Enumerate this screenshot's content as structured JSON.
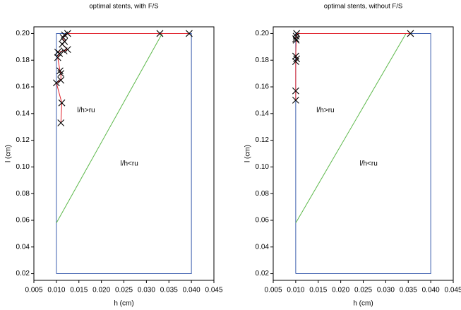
{
  "chart_data": [
    {
      "type": "line",
      "title": "optimal stents, with F/S",
      "xlabel": "h (cm)",
      "ylabel": "l (cm)",
      "xlim": [
        0.005,
        0.045
      ],
      "ylim": [
        0.015,
        0.205
      ],
      "xticks": [
        0.005,
        {
          "value": 0.01,
          "label": "0.010"
        },
        0.015,
        {
          "value": 0.02,
          "label": "0.020"
        },
        0.025,
        {
          "value": 0.03,
          "label": "0.030"
        },
        0.035,
        {
          "value": 0.04,
          "label": "0.040"
        },
        0.045
      ],
      "yticks": [
        0.02,
        0.04,
        0.06,
        0.08,
        {
          "value": 0.1,
          "label": "0.10"
        },
        0.12,
        0.14,
        0.16,
        0.18,
        {
          "value": 0.2,
          "label": "0.20"
        }
      ],
      "series": [
        {
          "color": "#3a5cae",
          "x": [
            0.01,
            0.04,
            0.04,
            0.01,
            0.01
          ],
          "values": [
            0.02,
            0.02,
            0.2,
            0.2,
            0.02
          ]
        },
        {
          "color": "#5cb84a",
          "x": [
            0.01,
            0.0335
          ],
          "values": [
            0.058,
            0.2
          ]
        },
        {
          "color": "#e0202a",
          "marker": "x",
          "x": [
            0.0395,
            0.033,
            0.0125,
            0.0118,
            0.0115,
            0.0118,
            0.0113,
            0.0125,
            0.0117,
            0.0103,
            0.0107,
            0.0103,
            0.0108,
            0.011,
            0.011,
            0.01,
            0.0112,
            0.011
          ],
          "values": [
            0.2,
            0.2,
            0.2,
            0.199,
            0.197,
            0.194,
            0.192,
            0.188,
            0.187,
            0.186,
            0.185,
            0.182,
            0.172,
            0.17,
            0.165,
            0.163,
            0.148,
            0.133
          ]
        }
      ],
      "annotations": [
        "l/h>ru",
        "l/h<ru"
      ]
    },
    {
      "type": "line",
      "title": "optimal stents, without F/S",
      "xlabel": "h (cm)",
      "ylabel": "l (cm)",
      "xlim": [
        0.005,
        0.045
      ],
      "ylim": [
        0.015,
        0.205
      ],
      "xticks": [
        0.005,
        {
          "value": 0.01,
          "label": "0.010"
        },
        0.015,
        {
          "value": 0.02,
          "label": "0.020"
        },
        0.025,
        {
          "value": 0.03,
          "label": "0.030"
        },
        0.035,
        {
          "value": 0.04,
          "label": "0.040"
        },
        0.045
      ],
      "yticks": [
        0.02,
        0.04,
        0.06,
        0.08,
        {
          "value": 0.1,
          "label": "0.10"
        },
        0.12,
        0.14,
        0.16,
        0.18,
        {
          "value": 0.2,
          "label": "0.20"
        }
      ],
      "series": [
        {
          "color": "#3a5cae",
          "x": [
            0.01,
            0.04,
            0.04,
            0.01,
            0.01
          ],
          "values": [
            0.02,
            0.02,
            0.2,
            0.2,
            0.02
          ]
        },
        {
          "color": "#5cb84a",
          "x": [
            0.01,
            0.0345
          ],
          "values": [
            0.058,
            0.2
          ]
        },
        {
          "color": "#e0202a",
          "marker": "x",
          "x": [
            0.0355,
            0.0102,
            0.0101,
            0.01,
            0.0101,
            0.01,
            0.0102,
            0.01,
            0.01,
            0.01
          ],
          "values": [
            0.2,
            0.2,
            0.198,
            0.196,
            0.195,
            0.183,
            0.181,
            0.179,
            0.157,
            0.15
          ]
        }
      ],
      "annotations": [
        "l/h>ru",
        "l/h<ru"
      ]
    }
  ]
}
